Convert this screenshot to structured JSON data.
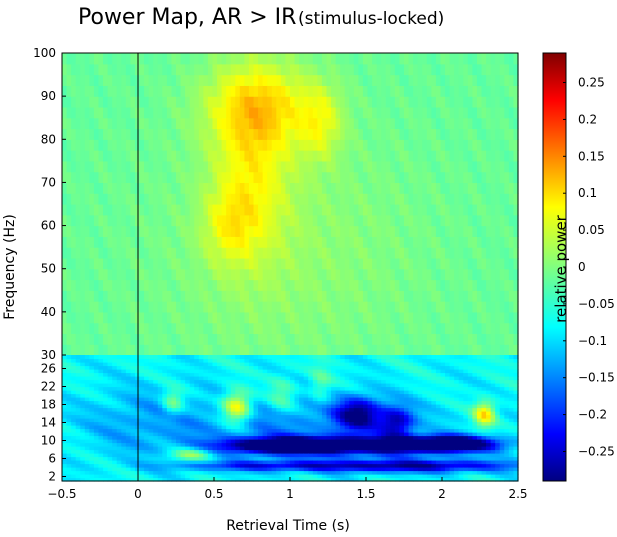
{
  "chart_data": {
    "type": "heatmap",
    "title": "Power Map, AR > IR",
    "subtitle": "(stimulus-locked)",
    "xlabel": "Retrieval Time (s)",
    "ylabel": "Frequency (Hz)",
    "colorbar_label": "relative power",
    "xlim": [
      -0.5,
      2.5
    ],
    "x_ticks": [
      "−0.5",
      "0",
      "0.5",
      "1",
      "1.5",
      "2",
      "2.5"
    ],
    "x_tick_values": [
      -0.5,
      0,
      0.5,
      1,
      1.5,
      2,
      2.5
    ],
    "y_ticks_high": [
      "30",
      "40",
      "50",
      "60",
      "70",
      "80",
      "90",
      "100"
    ],
    "y_tick_values_high": [
      30,
      40,
      50,
      60,
      70,
      80,
      90,
      100
    ],
    "y_ticks_low": [
      "2",
      "6",
      "10",
      "14",
      "18",
      "22",
      "26"
    ],
    "y_tick_values_low": [
      2,
      6,
      10,
      14,
      18,
      22,
      26
    ],
    "low_band_range_hz": [
      1,
      29
    ],
    "high_band_range_hz": [
      30,
      100
    ],
    "color_scale": {
      "min": -0.29,
      "max": 0.29,
      "colormap": "jet"
    },
    "colorbar_ticks": [
      "0.25",
      "0.2",
      "0.15",
      "0.1",
      "0.05",
      "0",
      "−0.05",
      "−0.1",
      "−0.15",
      "−0.2",
      "−0.25"
    ],
    "colorbar_tick_values": [
      0.25,
      0.2,
      0.15,
      0.1,
      0.05,
      0,
      -0.05,
      -0.1,
      -0.15,
      -0.2,
      -0.25
    ],
    "stimulus_onset_line_x": 0,
    "blobs": [
      {
        "band": "high",
        "t": 0.8,
        "f": 88,
        "st": 0.25,
        "sf": 7,
        "value": 0.09
      },
      {
        "band": "high",
        "t": 0.75,
        "f": 72,
        "st": 0.18,
        "sf": 14,
        "value": 0.07
      },
      {
        "band": "high",
        "t": 1.2,
        "f": 84,
        "st": 0.1,
        "sf": 6,
        "value": 0.06
      },
      {
        "band": "high",
        "t": 0.6,
        "f": 60,
        "st": 0.12,
        "sf": 6,
        "value": 0.05
      },
      {
        "band": "high",
        "t": 1.0,
        "f": 55,
        "st": 0.6,
        "sf": 20,
        "value": 0.025
      },
      {
        "band": "low",
        "t": 0.65,
        "f": 17.5,
        "st": 0.07,
        "sf": 2.5,
        "value": 0.19
      },
      {
        "band": "low",
        "t": 2.28,
        "f": 16,
        "st": 0.05,
        "sf": 2,
        "value": 0.16
      },
      {
        "band": "low",
        "t": 0.23,
        "f": 18.5,
        "st": 0.05,
        "sf": 2,
        "value": 0.1
      },
      {
        "band": "low",
        "t": 0.95,
        "f": 20,
        "st": 0.07,
        "sf": 3,
        "value": 0.07
      },
      {
        "band": "low",
        "t": 1.2,
        "f": 22,
        "st": 0.05,
        "sf": 3,
        "value": 0.06
      },
      {
        "band": "low",
        "t": 0.35,
        "f": 7,
        "st": 0.1,
        "sf": 1,
        "value": 0.1
      },
      {
        "band": "low",
        "t": 1.5,
        "f": 9,
        "st": 0.5,
        "sf": 1.3,
        "value": -0.27
      },
      {
        "band": "low",
        "t": 0.95,
        "f": 9,
        "st": 0.25,
        "sf": 1.2,
        "value": -0.22
      },
      {
        "band": "low",
        "t": 2.05,
        "f": 9.5,
        "st": 0.2,
        "sf": 1.2,
        "value": -0.25
      },
      {
        "band": "low",
        "t": 1.8,
        "f": 4.5,
        "st": 0.5,
        "sf": 1,
        "value": -0.2
      },
      {
        "band": "low",
        "t": 0.8,
        "f": 4.5,
        "st": 0.4,
        "sf": 0.8,
        "value": -0.12
      },
      {
        "band": "low",
        "t": 1.45,
        "f": 16,
        "st": 0.1,
        "sf": 2.5,
        "value": -0.2
      },
      {
        "band": "low",
        "t": 1.7,
        "f": 14,
        "st": 0.08,
        "sf": 2.5,
        "value": -0.17
      },
      {
        "band": "low",
        "t": 1.0,
        "f": 14,
        "st": 0.6,
        "sf": 5,
        "value": -0.07
      },
      {
        "band": "low",
        "t": 0.0,
        "f": 14,
        "st": 0.3,
        "sf": 6,
        "value": -0.04
      }
    ],
    "low_band_baseline": -0.07,
    "high_band_baseline": -0.015
  }
}
